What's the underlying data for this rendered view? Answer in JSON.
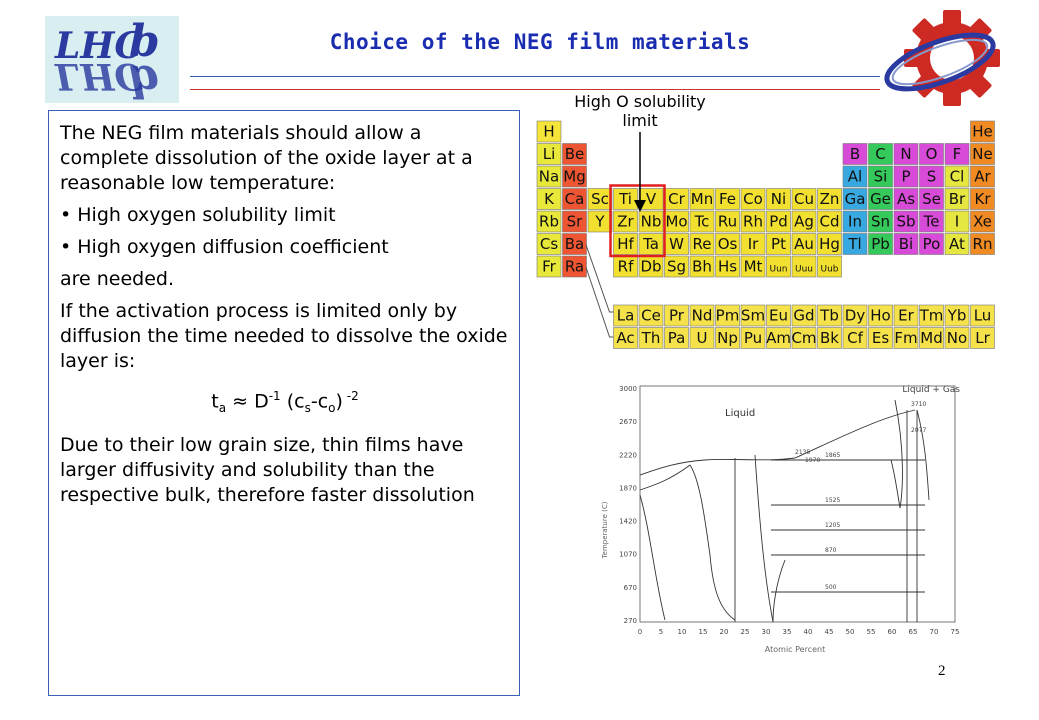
{
  "header": {
    "title": "Choice of the NEG film materials",
    "logo_text": "LHCb"
  },
  "body": {
    "intro": "The NEG film materials should allow a complete dissolution of the oxide layer at a reasonable low temperature:",
    "bullet1": "• High oxygen solubility limit",
    "bullet2": "• High oxygen diffusion coefficient",
    "needed": "are needed.",
    "activation": "If the activation process is limited only by diffusion the time needed to dissolve the oxide layer is:",
    "formula": {
      "t": "t",
      "a": "a",
      "approx": " ≈ D",
      "minus1": "-1",
      "paren_open": " (c",
      "s": "s",
      "dash": "-c",
      "o": "o",
      "paren_close": ")",
      "minus2": " -2"
    },
    "conclusion": "Due to their low grain size, thin films have larger diffusivity and solubility than the respective bulk, therefore faster dissolution"
  },
  "periodic_table": {
    "label": "High O solubility limit",
    "main": [
      [
        "H",
        "",
        "",
        "",
        "",
        "",
        "",
        "",
        "",
        "",
        "",
        "",
        "",
        "",
        "",
        "",
        "",
        "He"
      ],
      [
        "Li",
        "Be",
        "",
        "",
        "",
        "",
        "",
        "",
        "",
        "",
        "",
        "",
        "B",
        "C",
        "N",
        "O",
        "F",
        "Ne"
      ],
      [
        "Na",
        "Mg",
        "",
        "",
        "",
        "",
        "",
        "",
        "",
        "",
        "",
        "",
        "Al",
        "Si",
        "P",
        "S",
        "Cl",
        "Ar"
      ],
      [
        "K",
        "Ca",
        "Sc",
        "Ti",
        "V",
        "Cr",
        "Mn",
        "Fe",
        "Co",
        "Ni",
        "Cu",
        "Zn",
        "Ga",
        "Ge",
        "As",
        "Se",
        "Br",
        "Kr"
      ],
      [
        "Rb",
        "Sr",
        "Y",
        "Zr",
        "Nb",
        "Mo",
        "Tc",
        "Ru",
        "Rh",
        "Pd",
        "Ag",
        "Cd",
        "In",
        "Sn",
        "Sb",
        "Te",
        "I",
        "Xe"
      ],
      [
        "Cs",
        "Ba",
        "",
        "Hf",
        "Ta",
        "W",
        "Re",
        "Os",
        "Ir",
        "Pt",
        "Au",
        "Hg",
        "Tl",
        "Pb",
        "Bi",
        "Po",
        "At",
        "Rn"
      ],
      [
        "Fr",
        "Ra",
        "",
        "Rf",
        "Db",
        "Sg",
        "Bh",
        "Hs",
        "Mt",
        "Uun",
        "Uuu",
        "Uub",
        "",
        "",
        "",
        "",
        "",
        ""
      ]
    ],
    "lanthanides": [
      "La",
      "Ce",
      "Pr",
      "Nd",
      "Pm",
      "Sm",
      "Eu",
      "Gd",
      "Tb",
      "Dy",
      "Ho",
      "Er",
      "Tm",
      "Yb",
      "Lu"
    ],
    "actinides": [
      "Ac",
      "Th",
      "Pa",
      "U",
      "Np",
      "Pu",
      "Am",
      "Cm",
      "Bk",
      "Cf",
      "Es",
      "Fm",
      "Md",
      "No",
      "Lr"
    ],
    "colors": {
      "hydrogen": "#f5e43a",
      "alkali": "#e8e83a",
      "alkaline": "#ee5533",
      "transition": "#f2e030",
      "metalloid_blue": "#38a8e0",
      "nonmetal_green": "#35c85a",
      "pnictogen_purple": "#d84ad8",
      "halogen_yellow": "#e6e640",
      "noble_orange": "#f08a22",
      "lanthanide": "#f5e24a"
    }
  },
  "phase_diagram": {
    "legend": "Liquid + Gas",
    "liquid_label": "Liquid",
    "y_axis_label": "Temperature (C)",
    "x_axis_label": "Atomic Percent",
    "y_ticks": [
      "3000",
      "2670",
      "2220",
      "1870",
      "1420",
      "1070",
      "670",
      "270"
    ],
    "x_ticks": [
      "0",
      "5",
      "10",
      "15",
      "20",
      "25",
      "30",
      "35",
      "40",
      "45",
      "50",
      "55",
      "60",
      "65",
      "70",
      "75"
    ],
    "annotations": [
      "3710",
      "2077",
      "2135",
      "1970",
      "1865",
      "1525",
      "1205",
      "870",
      "500"
    ]
  },
  "footer": {
    "page_number": "2"
  }
}
